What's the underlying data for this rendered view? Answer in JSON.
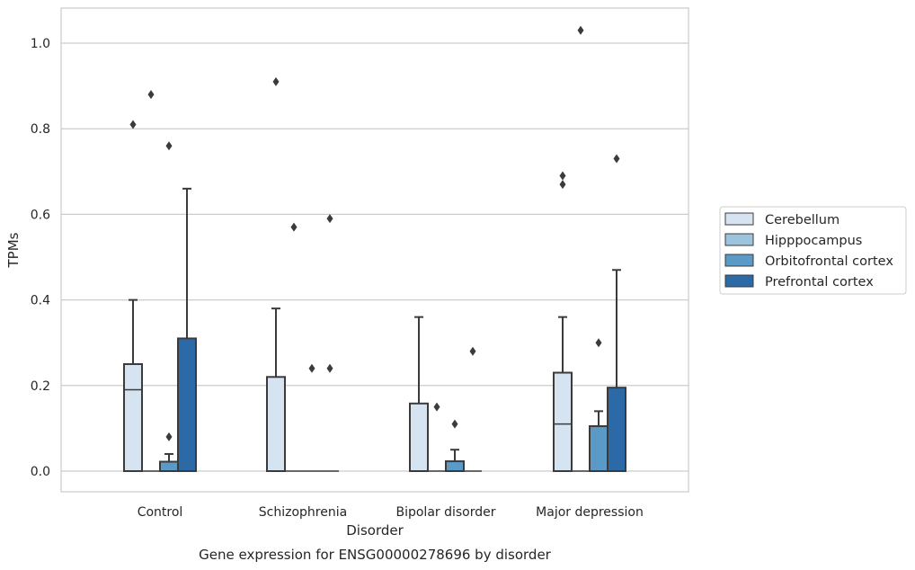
{
  "chart_data": {
    "type": "box",
    "xlabel": "Disorder",
    "ylabel": "TPMs",
    "caption": "Gene expression for ENSG00000278696 by disorder",
    "ylim": [
      -0.05,
      1.08
    ],
    "yticks": [
      0.0,
      0.2,
      0.4,
      0.6,
      0.8,
      1.0
    ],
    "ytick_labels": [
      "0.0",
      "0.2",
      "0.4",
      "0.6",
      "0.8",
      "1.0"
    ],
    "grid": true,
    "legend_position": "right",
    "categories": [
      "Control",
      "Schizophrenia",
      "Bipolar disorder",
      "Major depression"
    ],
    "series": [
      {
        "name": "Cerebellum",
        "color": "#d6e4f1",
        "boxes": [
          {
            "q1": 0.0,
            "median": 0.19,
            "q3": 0.25,
            "whisker_low": 0.0,
            "whisker_high": 0.4,
            "outliers": [
              0.81
            ]
          },
          {
            "q1": 0.0,
            "median": 0.0,
            "q3": 0.22,
            "whisker_low": 0.0,
            "whisker_high": 0.38,
            "outliers": [
              0.91
            ]
          },
          {
            "q1": 0.0,
            "median": 0.0,
            "q3": 0.158,
            "whisker_low": 0.0,
            "whisker_high": 0.36,
            "outliers": []
          },
          {
            "q1": 0.0,
            "median": 0.11,
            "q3": 0.23,
            "whisker_low": 0.0,
            "whisker_high": 0.36,
            "outliers": [
              0.67,
              0.69
            ]
          }
        ]
      },
      {
        "name": "Hipppocampus",
        "color": "#9ec4dd",
        "boxes": [
          {
            "q1": 0.0,
            "median": 0.0,
            "q3": 0.0,
            "whisker_low": 0.0,
            "whisker_high": 0.0,
            "outliers": [
              0.88
            ]
          },
          {
            "q1": 0.0,
            "median": 0.0,
            "q3": 0.0,
            "whisker_low": 0.0,
            "whisker_high": 0.0,
            "outliers": [
              0.57
            ]
          },
          {
            "q1": 0.0,
            "median": 0.0,
            "q3": 0.0,
            "whisker_low": 0.0,
            "whisker_high": 0.0,
            "outliers": [
              0.15
            ]
          },
          {
            "q1": 0.0,
            "median": 0.0,
            "q3": 0.0,
            "whisker_low": 0.0,
            "whisker_high": 0.0,
            "outliers": [
              1.03
            ]
          }
        ]
      },
      {
        "name": "Orbitofrontal cortex",
        "color": "#5b9ac7",
        "boxes": [
          {
            "q1": 0.0,
            "median": 0.0,
            "q3": 0.022,
            "whisker_low": 0.0,
            "whisker_high": 0.04,
            "outliers": [
              0.08,
              0.76
            ]
          },
          {
            "q1": 0.0,
            "median": 0.0,
            "q3": 0.0,
            "whisker_low": 0.0,
            "whisker_high": 0.0,
            "outliers": [
              0.24
            ]
          },
          {
            "q1": 0.0,
            "median": 0.0,
            "q3": 0.023,
            "whisker_low": 0.0,
            "whisker_high": 0.05,
            "outliers": [
              0.11
            ]
          },
          {
            "q1": 0.0,
            "median": 0.0,
            "q3": 0.105,
            "whisker_low": 0.0,
            "whisker_high": 0.14,
            "outliers": [
              0.3
            ]
          }
        ]
      },
      {
        "name": "Prefrontal cortex",
        "color": "#2b6aa7",
        "boxes": [
          {
            "q1": 0.0,
            "median": 0.0,
            "q3": 0.31,
            "whisker_low": 0.0,
            "whisker_high": 0.66,
            "outliers": []
          },
          {
            "q1": 0.0,
            "median": 0.0,
            "q3": 0.0,
            "whisker_low": 0.0,
            "whisker_high": 0.0,
            "outliers": [
              0.24,
              0.59
            ]
          },
          {
            "q1": 0.0,
            "median": 0.0,
            "q3": 0.0,
            "whisker_low": 0.0,
            "whisker_high": 0.0,
            "outliers": [
              0.28
            ]
          },
          {
            "q1": 0.0,
            "median": 0.0,
            "q3": 0.195,
            "whisker_low": 0.0,
            "whisker_high": 0.47,
            "outliers": [
              0.73
            ]
          }
        ]
      }
    ]
  }
}
